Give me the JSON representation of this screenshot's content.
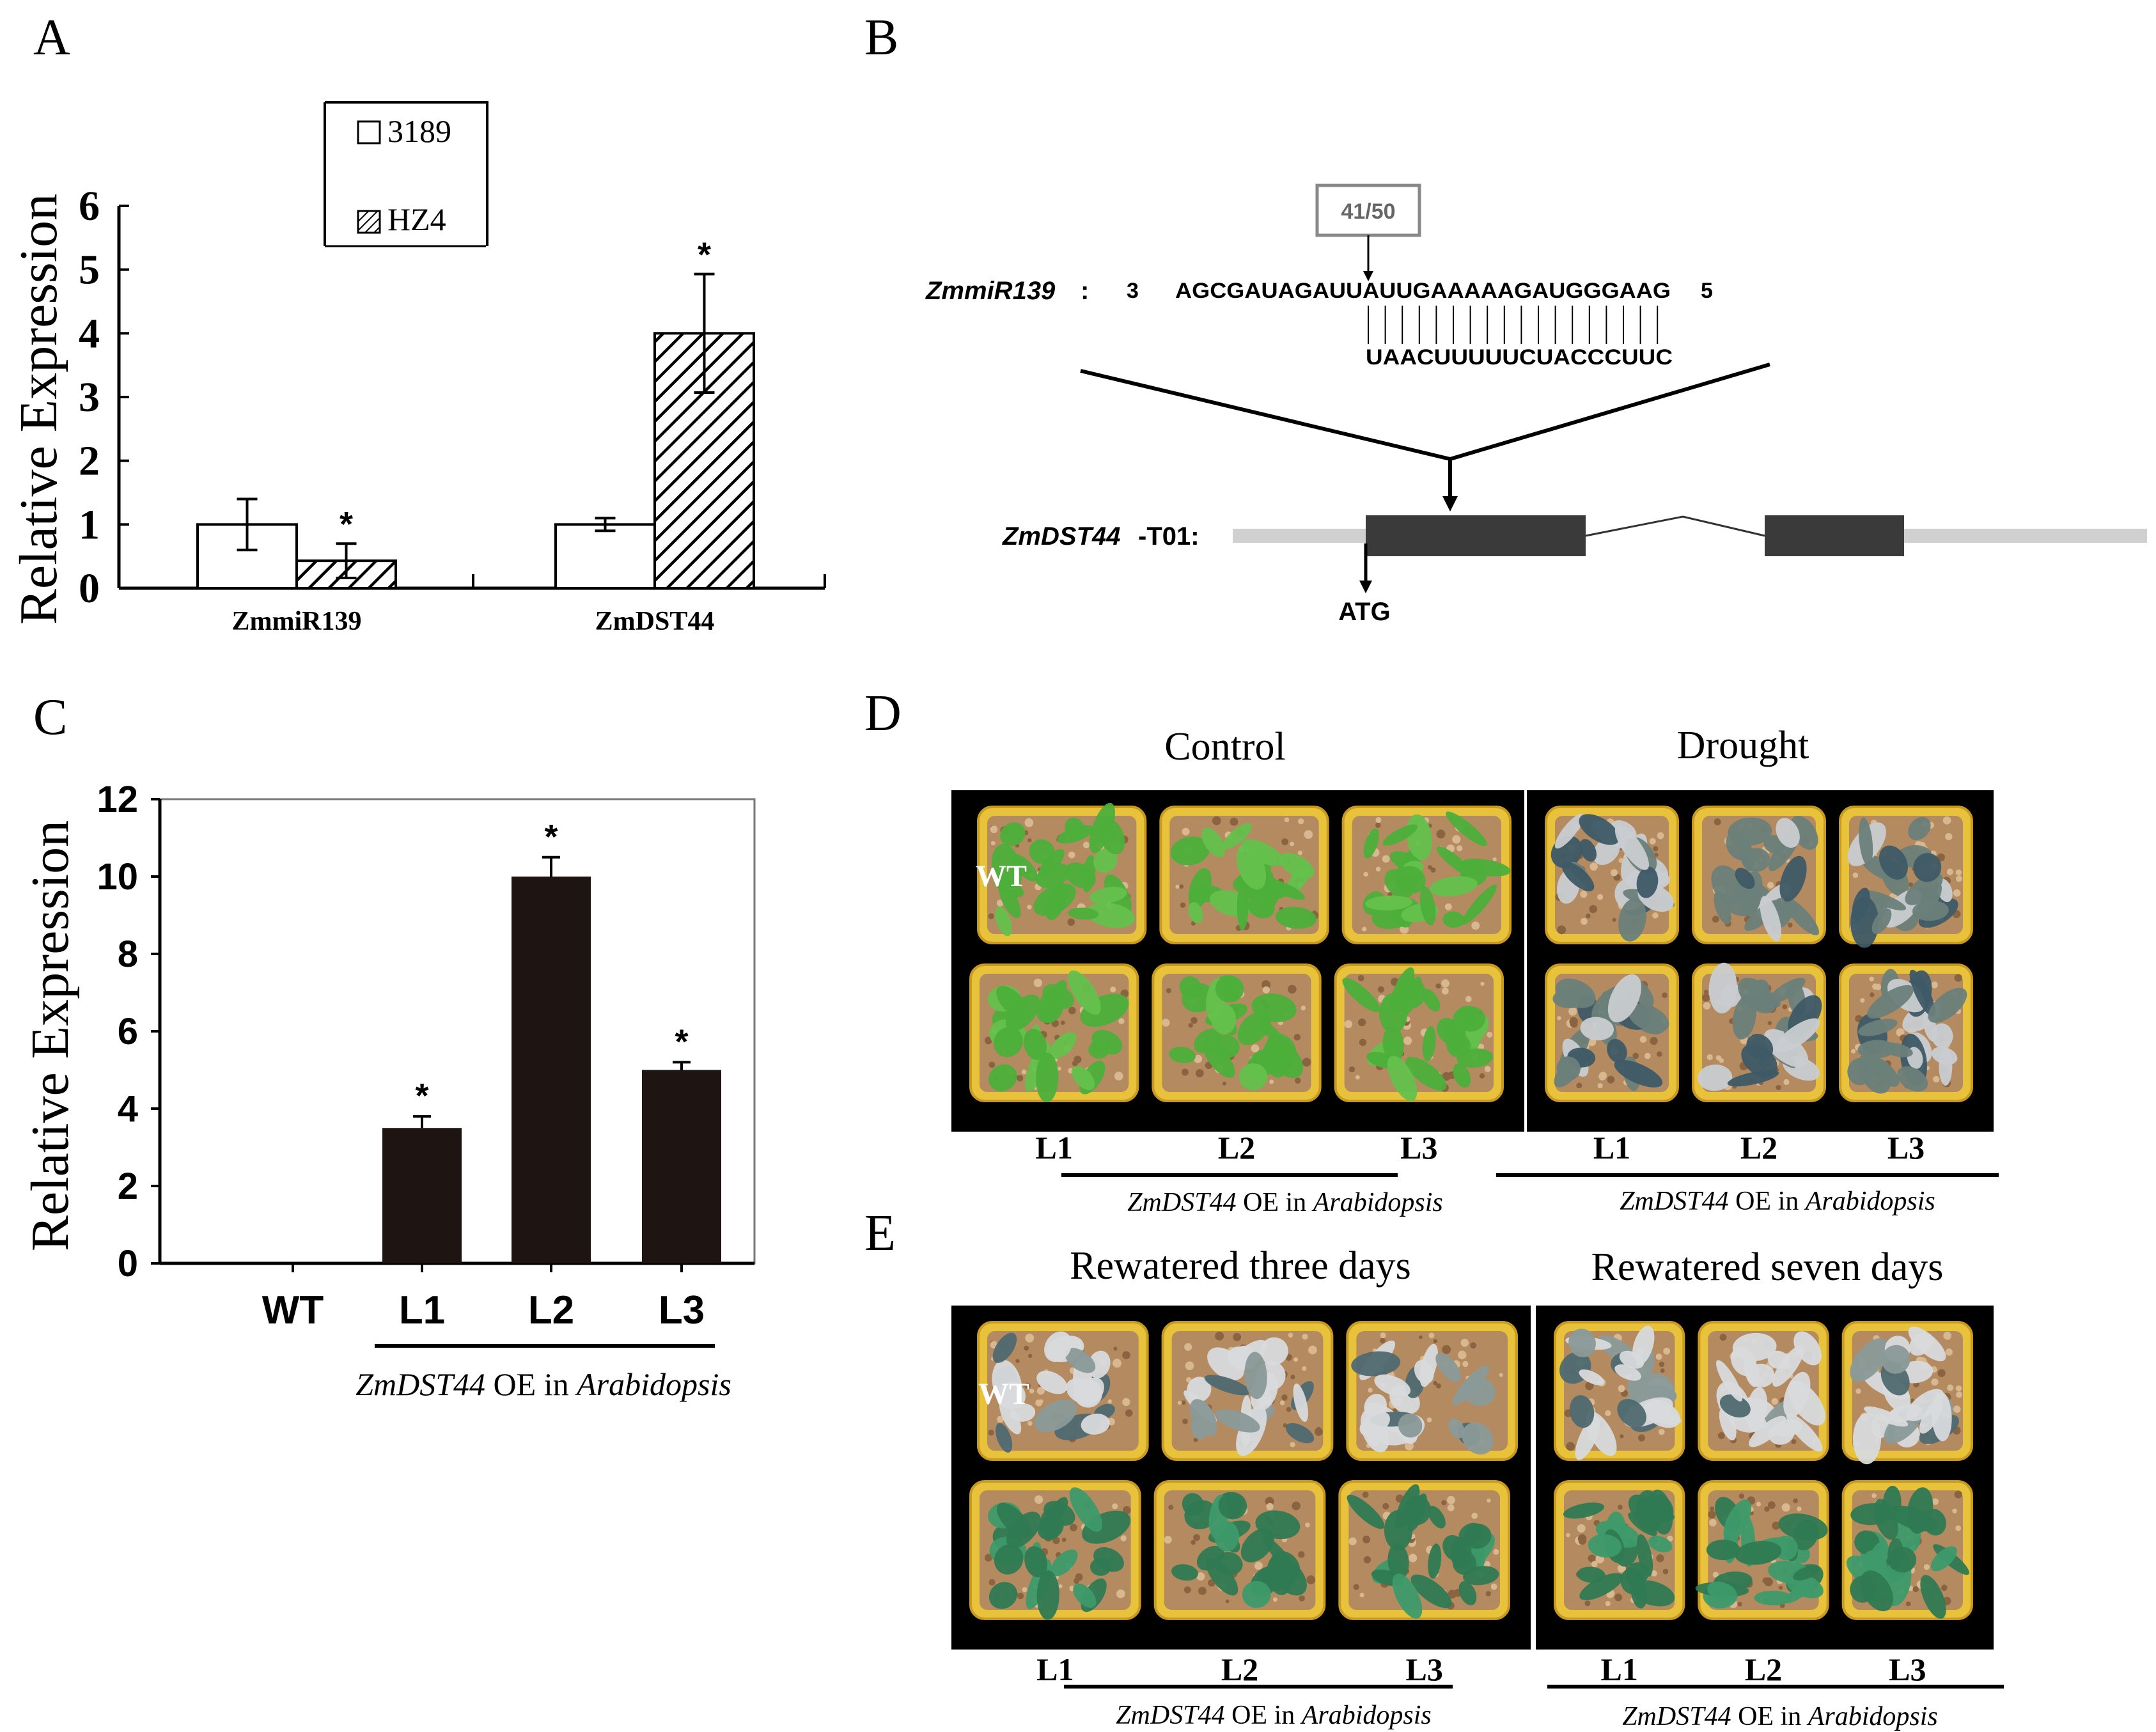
{
  "panels": {
    "A": {
      "letter": "A",
      "legend": [
        "3189",
        "HZ4"
      ],
      "ylabel": "Relative Expression",
      "yticks": [
        "0",
        "1",
        "2",
        "3",
        "4",
        "5",
        "6"
      ],
      "groups": [
        "ZmmiR139",
        "ZmDST44"
      ],
      "sig": "*"
    },
    "B": {
      "letter": "B",
      "score_box": "41/50",
      "mirna_label": "ZmmiR139",
      "colon": ":",
      "end3": "3",
      "end5": "5",
      "mirna_seq": "AGCGAUAGAUUAUUGAAAAAGAUGGGAAG",
      "target_seq": "UAACUUUUUCUACCCUUC",
      "gene_label_italic": "ZmDST44",
      "gene_label_rest": "-T01:",
      "atg": "ATG"
    },
    "C": {
      "letter": "C",
      "ylabel": "Relative Expression",
      "yticks": [
        "0",
        "2",
        "4",
        "6",
        "8",
        "10",
        "12"
      ],
      "categories": [
        "WT",
        "L1",
        "L2",
        "L3"
      ],
      "caption_italic1": "ZmDST44",
      "caption_mid": " OE in ",
      "caption_italic2": "Arabidopsis",
      "sig": "*"
    },
    "D": {
      "letter": "D",
      "left_title": "Control",
      "right_title": "Drought",
      "wt_label": "WT",
      "lines": [
        "L1",
        "L2",
        "L3"
      ],
      "caption_italic1": "ZmDST44",
      "caption_mid": " OE in ",
      "caption_italic2": "Arabidopsis"
    },
    "E": {
      "letter": "E",
      "left_title": "Rewatered three days",
      "right_title": "Rewatered seven days",
      "wt_label": "WT",
      "lines": [
        "L1",
        "L2",
        "L3"
      ],
      "caption_italic1": "ZmDST44",
      "caption_mid": " OE in ",
      "caption_italic2": "Arabidopsis"
    }
  },
  "chart_data": [
    {
      "type": "bar",
      "panel": "A",
      "categories": [
        "ZmmiR139",
        "ZmDST44"
      ],
      "series": [
        {
          "name": "3189",
          "values": [
            1.0,
            1.0
          ],
          "errors": [
            0.4,
            0.1
          ],
          "sig": [
            false,
            false
          ]
        },
        {
          "name": "HZ4",
          "values": [
            0.43,
            4.0
          ],
          "errors": [
            0.27,
            0.93
          ],
          "sig": [
            true,
            true
          ]
        }
      ],
      "ylabel": "Relative Expression",
      "ylim": [
        0,
        6
      ]
    },
    {
      "type": "bar",
      "panel": "C",
      "categories": [
        "WT",
        "L1",
        "L2",
        "L3"
      ],
      "values": [
        0,
        3.5,
        10.0,
        5.0
      ],
      "errors": [
        0,
        0.3,
        0.5,
        0.2
      ],
      "sig": [
        false,
        true,
        true,
        true
      ],
      "ylabel": "Relative Expression",
      "ylim": [
        0,
        12
      ]
    }
  ],
  "colors": {
    "black": "#000000",
    "bar_c": "#1e1412",
    "exon": "#3a3a3a",
    "utr": "#d0d0d0",
    "photo_bg": "#000000",
    "pot": "#e8c23a",
    "soil": "#b48a60",
    "green_leaf": "#4caf3a",
    "stressed_leaf": "#6c7f7a",
    "dark_green": "#2f7a52"
  }
}
